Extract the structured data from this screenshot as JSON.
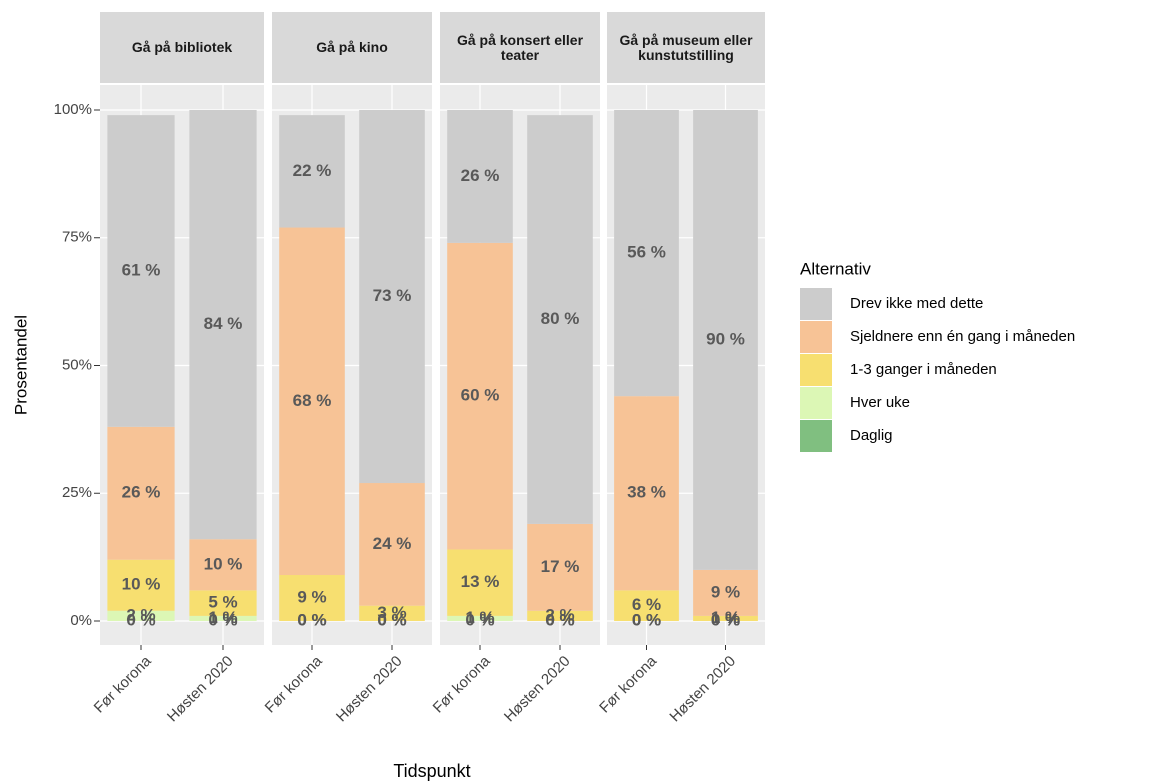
{
  "chart_data": {
    "type": "bar",
    "stacked": true,
    "ylabel": "Prosentandel",
    "xlabel": "Tidspunkt",
    "legend_title": "Alternativ",
    "ylim": [
      0,
      100
    ],
    "yticks": [
      {
        "value": 0,
        "label": "0%"
      },
      {
        "value": 25,
        "label": "25%"
      },
      {
        "value": 50,
        "label": "50%"
      },
      {
        "value": 75,
        "label": "75%"
      },
      {
        "value": 100,
        "label": "100%"
      }
    ],
    "grid": true,
    "series": [
      {
        "name": "Daglig",
        "color": "#80bf80"
      },
      {
        "name": "Hver uke",
        "color": "#dcf7b5"
      },
      {
        "name": "1-3 ganger i måneden",
        "color": "#f7df70"
      },
      {
        "name": "Sjeldnere enn én gang i måneden",
        "color": "#f7c396"
      },
      {
        "name": "Drev ikke med dette",
        "color": "#cccccc"
      }
    ],
    "facets": [
      {
        "title": "Gå på bibliotek",
        "categories": [
          "Før korona",
          "Høsten 2020"
        ],
        "series": [
          {
            "values": [
              0,
              0
            ],
            "value_labels": [
              "0 %",
              "0 %"
            ]
          },
          {
            "values": [
              2,
              1
            ],
            "value_labels": [
              "2 %",
              "1 %"
            ]
          },
          {
            "values": [
              10,
              5
            ],
            "value_labels": [
              "10 %",
              "5 %"
            ]
          },
          {
            "values": [
              26,
              10
            ],
            "value_labels": [
              "26 %",
              "10 %"
            ]
          },
          {
            "values": [
              61,
              84
            ],
            "value_labels": [
              "61 %",
              "84 %"
            ]
          }
        ]
      },
      {
        "title": "Gå på kino",
        "categories": [
          "Før korona",
          "Høsten 2020"
        ],
        "series": [
          {
            "values": [
              0,
              0
            ],
            "value_labels": [
              "0 %",
              "0 %"
            ]
          },
          {
            "values": [
              0,
              0
            ],
            "value_labels": [
              "0 %",
              "0 %"
            ]
          },
          {
            "values": [
              9,
              3
            ],
            "value_labels": [
              "9 %",
              "3 %"
            ]
          },
          {
            "values": [
              68,
              24
            ],
            "value_labels": [
              "68 %",
              "24 %"
            ]
          },
          {
            "values": [
              22,
              73
            ],
            "value_labels": [
              "22 %",
              "73 %"
            ]
          }
        ]
      },
      {
        "title": "Gå på konsert eller teater",
        "categories": [
          "Før korona",
          "Høsten 2020"
        ],
        "series": [
          {
            "values": [
              0,
              0
            ],
            "value_labels": [
              "0 %",
              "0 %"
            ]
          },
          {
            "values": [
              1,
              0
            ],
            "value_labels": [
              "1 %",
              "0 %"
            ]
          },
          {
            "values": [
              13,
              2
            ],
            "value_labels": [
              "13 %",
              "2 %"
            ]
          },
          {
            "values": [
              60,
              17
            ],
            "value_labels": [
              "60 %",
              "17 %"
            ]
          },
          {
            "values": [
              26,
              80
            ],
            "value_labels": [
              "26 %",
              "80 %"
            ]
          }
        ]
      },
      {
        "title": "Gå på museum eller kunstutstilling",
        "categories": [
          "Før korona",
          "Høsten 2020"
        ],
        "series": [
          {
            "values": [
              0,
              0
            ],
            "value_labels": [
              "0 %",
              "0 %"
            ]
          },
          {
            "values": [
              0,
              0
            ],
            "value_labels": [
              "0 %",
              "0 %"
            ]
          },
          {
            "values": [
              6,
              1
            ],
            "value_labels": [
              "6 %",
              "1 %"
            ]
          },
          {
            "values": [
              38,
              9
            ],
            "value_labels": [
              "38 %",
              "9 %"
            ]
          },
          {
            "values": [
              56,
              90
            ],
            "value_labels": [
              "56 %",
              "90 %"
            ]
          }
        ]
      }
    ]
  }
}
